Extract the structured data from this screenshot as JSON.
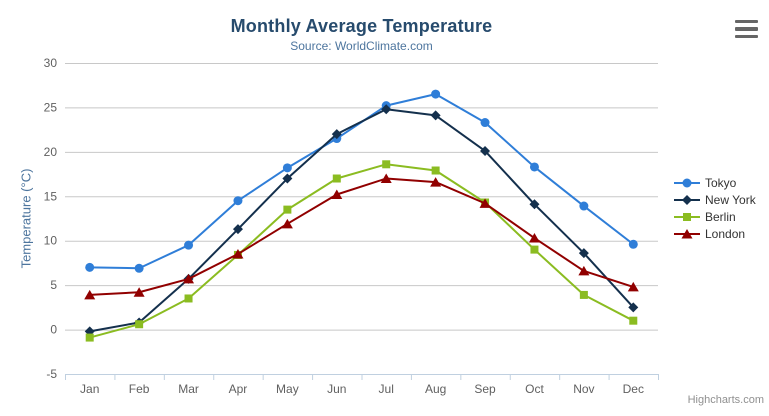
{
  "credits": "Highcharts.com",
  "icons": {
    "context_menu": "hamburger"
  },
  "chart_data": {
    "type": "line",
    "title": "Monthly Average Temperature",
    "subtitle": "Source: WorldClimate.com",
    "ylabel": "Temperature (°C)",
    "xlabel": "",
    "ylim": [
      -5,
      30
    ],
    "ytick_step": 5,
    "grid": true,
    "legend_position": "right",
    "grid_color": "#C8C8C8",
    "axis_line_color": "#C0D0E0",
    "categories": [
      "Jan",
      "Feb",
      "Mar",
      "Apr",
      "May",
      "Jun",
      "Jul",
      "Aug",
      "Sep",
      "Oct",
      "Nov",
      "Dec"
    ],
    "series": [
      {
        "name": "Tokyo",
        "color": "#2f7ed8",
        "marker": "circle",
        "values": [
          7.0,
          6.9,
          9.5,
          14.5,
          18.2,
          21.5,
          25.2,
          26.5,
          23.3,
          18.3,
          13.9,
          9.6
        ]
      },
      {
        "name": "New York",
        "color": "#14304d",
        "marker": "diamond",
        "values": [
          -0.2,
          0.8,
          5.7,
          11.3,
          17.0,
          22.0,
          24.8,
          24.1,
          20.1,
          14.1,
          8.6,
          2.5
        ]
      },
      {
        "name": "Berlin",
        "color": "#8bbc21",
        "marker": "square",
        "values": [
          -0.9,
          0.6,
          3.5,
          8.4,
          13.5,
          17.0,
          18.6,
          17.9,
          14.3,
          9.0,
          3.9,
          1.0
        ]
      },
      {
        "name": "London",
        "color": "#910000",
        "marker": "triangle",
        "values": [
          3.9,
          4.2,
          5.7,
          8.5,
          11.9,
          15.2,
          17.0,
          16.6,
          14.2,
          10.3,
          6.6,
          4.8
        ]
      }
    ]
  }
}
